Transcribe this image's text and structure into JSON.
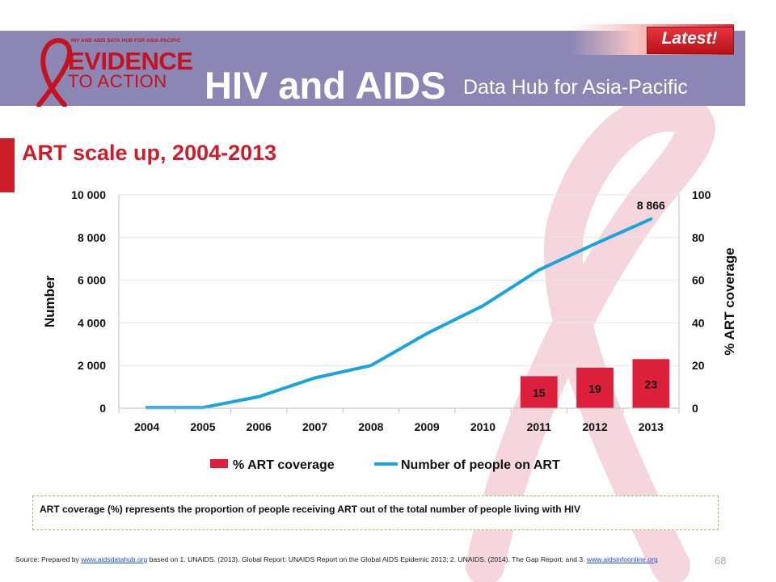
{
  "header": {
    "latest_label": "Latest!",
    "logo_top_text": "HIV AND AIDS DATA HUB FOR ASIA-PACIFIC",
    "logo_line1": "EVIDENCE",
    "logo_line2": "TO ACTION",
    "hub_title": "HIV and AIDS",
    "hub_subtitle": "Data Hub for Asia-Pacific"
  },
  "slide": {
    "title": "ART scale up, 2004-2013"
  },
  "chart_data": {
    "type": "bar",
    "categories": [
      "2004",
      "2005",
      "2006",
      "2007",
      "2008",
      "2009",
      "2010",
      "2011",
      "2012",
      "2013"
    ],
    "series": [
      {
        "name": "% ART coverage",
        "type": "bar",
        "axis": "right",
        "color": "#dc1f3a",
        "values": [
          null,
          null,
          null,
          null,
          null,
          null,
          null,
          15,
          19,
          23
        ],
        "data_labels": [
          "",
          "",
          "",
          "",
          "",
          "",
          "",
          "15",
          "19",
          "23"
        ]
      },
      {
        "name": "Number of people on ART",
        "type": "line",
        "axis": "left",
        "color": "#1aa3e0",
        "values": [
          30,
          30,
          540,
          1420,
          2000,
          3500,
          4800,
          6480,
          7700,
          8866
        ],
        "data_labels": [
          "",
          "",
          "",
          "",
          "",
          "",
          "",
          "",
          "",
          "8 866"
        ]
      }
    ],
    "ylabel": "Number",
    "ylabel_right": "% ART coverage",
    "ylim": [
      0,
      10000
    ],
    "ylim_right": [
      0,
      100
    ],
    "yticks": [
      "0",
      "2 000",
      "4 000",
      "6 000",
      "8 000",
      "10 000"
    ],
    "yticks_right": [
      "0",
      "20",
      "40",
      "60",
      "80",
      "100"
    ],
    "grid": true,
    "legend_position": "bottom"
  },
  "note": {
    "text": "ART coverage  (%) represents the proportion of people receiving ART out of the total number of people living with HIV"
  },
  "source": {
    "prefix": "Source: Prepared by ",
    "link1": "www.aidsdatahub.org",
    "middle": "   based on 1. UNAIDS. (2013). Global Report: UNAIDS Report on the Global AIDS Epidemic 2013; 2. UNAIDS. (2014). The Gap Report; and 3. ",
    "link2": "www.aidsinfoonline.org"
  },
  "page_number": "68",
  "colors": {
    "header_band": "#8b86b3",
    "accent_red": "#cc1d2a",
    "bar_red": "#dc1f3a",
    "line_blue": "#1aa3e0"
  }
}
